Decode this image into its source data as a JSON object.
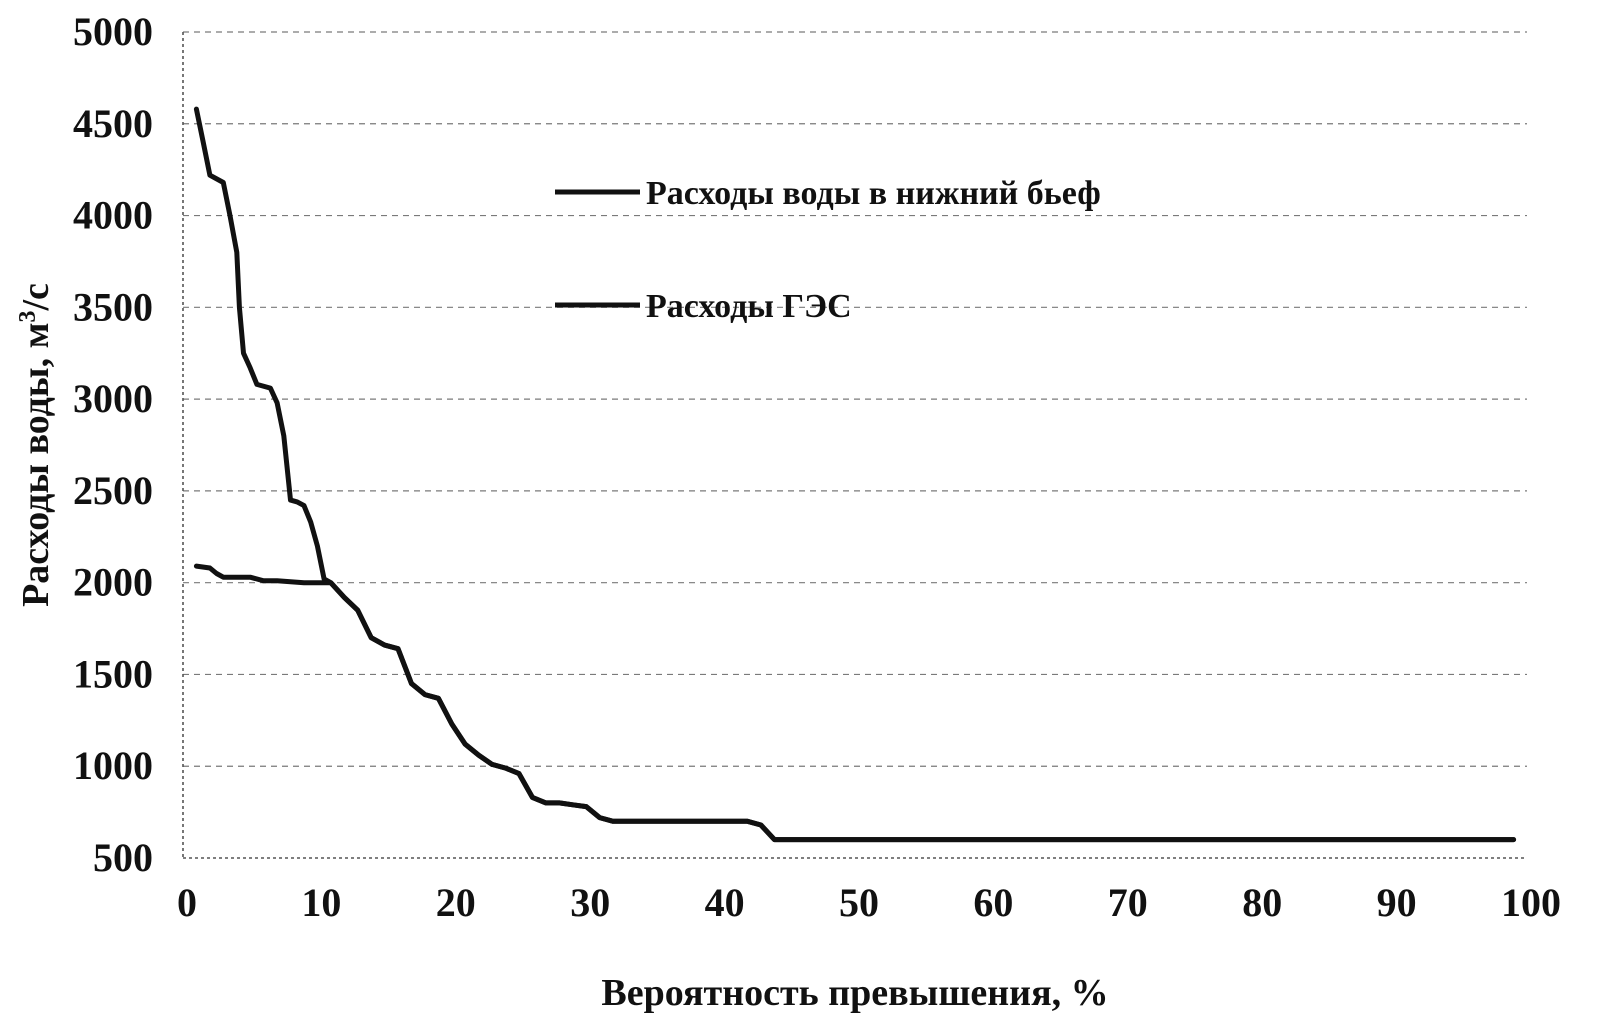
{
  "chart_data": {
    "type": "line",
    "title": "",
    "xlabel": "Вероятность превышения, %",
    "ylabel_main": "Расходы воды, м",
    "ylabel_sup": "3",
    "ylabel_tail": "/с",
    "xlim": [
      0,
      100
    ],
    "ylim": [
      500,
      5000
    ],
    "x_ticks": [
      0,
      10,
      20,
      30,
      40,
      50,
      60,
      70,
      80,
      90,
      100
    ],
    "y_ticks": [
      500,
      1000,
      1500,
      2000,
      2500,
      3000,
      3500,
      4000,
      4500,
      5000
    ],
    "grid": true,
    "legend_position": "upper-center",
    "series": [
      {
        "name": "Расходы воды в нижний бьеф",
        "color": "#111111",
        "points": [
          [
            1,
            4580
          ],
          [
            1.5,
            4400
          ],
          [
            2,
            4220
          ],
          [
            3,
            4180
          ],
          [
            3.5,
            4000
          ],
          [
            4,
            3800
          ],
          [
            4.2,
            3500
          ],
          [
            4.5,
            3250
          ],
          [
            5,
            3170
          ],
          [
            5.5,
            3080
          ],
          [
            6.5,
            3060
          ],
          [
            7,
            2980
          ],
          [
            7.5,
            2800
          ],
          [
            8,
            2450
          ],
          [
            8.5,
            2440
          ],
          [
            9,
            2420
          ],
          [
            9.5,
            2330
          ],
          [
            10,
            2200
          ],
          [
            10.5,
            2020
          ],
          [
            11,
            2000
          ],
          [
            12,
            1920
          ],
          [
            13,
            1850
          ],
          [
            14,
            1700
          ],
          [
            15,
            1660
          ],
          [
            16,
            1640
          ],
          [
            17,
            1450
          ],
          [
            18,
            1390
          ],
          [
            19,
            1370
          ],
          [
            20,
            1230
          ],
          [
            21,
            1120
          ],
          [
            22,
            1060
          ],
          [
            23,
            1010
          ],
          [
            24,
            990
          ],
          [
            25,
            960
          ],
          [
            26,
            830
          ],
          [
            27,
            800
          ],
          [
            28,
            800
          ],
          [
            29,
            790
          ],
          [
            30,
            780
          ],
          [
            31,
            720
          ],
          [
            32,
            700
          ],
          [
            35,
            700
          ],
          [
            40,
            700
          ],
          [
            42,
            700
          ],
          [
            43,
            680
          ],
          [
            44,
            600
          ],
          [
            50,
            600
          ],
          [
            60,
            600
          ],
          [
            70,
            600
          ],
          [
            80,
            600
          ],
          [
            90,
            600
          ],
          [
            99,
            600
          ]
        ]
      },
      {
        "name": "Расходы ГЭС",
        "color": "#111111",
        "points": [
          [
            1,
            2090
          ],
          [
            2,
            2080
          ],
          [
            2.5,
            2050
          ],
          [
            3,
            2030
          ],
          [
            4,
            2030
          ],
          [
            5,
            2030
          ],
          [
            6,
            2010
          ],
          [
            7,
            2010
          ],
          [
            8,
            2005
          ],
          [
            9,
            2000
          ],
          [
            10,
            2000
          ],
          [
            11,
            2000
          ],
          [
            12,
            1920
          ],
          [
            13,
            1850
          ],
          [
            14,
            1700
          ],
          [
            15,
            1660
          ],
          [
            16,
            1640
          ],
          [
            17,
            1450
          ],
          [
            18,
            1390
          ],
          [
            19,
            1370
          ],
          [
            20,
            1230
          ],
          [
            21,
            1120
          ],
          [
            22,
            1060
          ],
          [
            23,
            1010
          ],
          [
            24,
            990
          ],
          [
            25,
            960
          ],
          [
            26,
            830
          ],
          [
            27,
            800
          ],
          [
            28,
            800
          ],
          [
            29,
            790
          ],
          [
            30,
            780
          ],
          [
            31,
            720
          ],
          [
            32,
            700
          ],
          [
            35,
            700
          ],
          [
            40,
            700
          ],
          [
            42,
            700
          ],
          [
            43,
            680
          ],
          [
            44,
            600
          ],
          [
            50,
            600
          ],
          [
            60,
            600
          ],
          [
            70,
            600
          ],
          [
            80,
            600
          ],
          [
            90,
            600
          ],
          [
            99,
            600
          ]
        ]
      }
    ]
  }
}
